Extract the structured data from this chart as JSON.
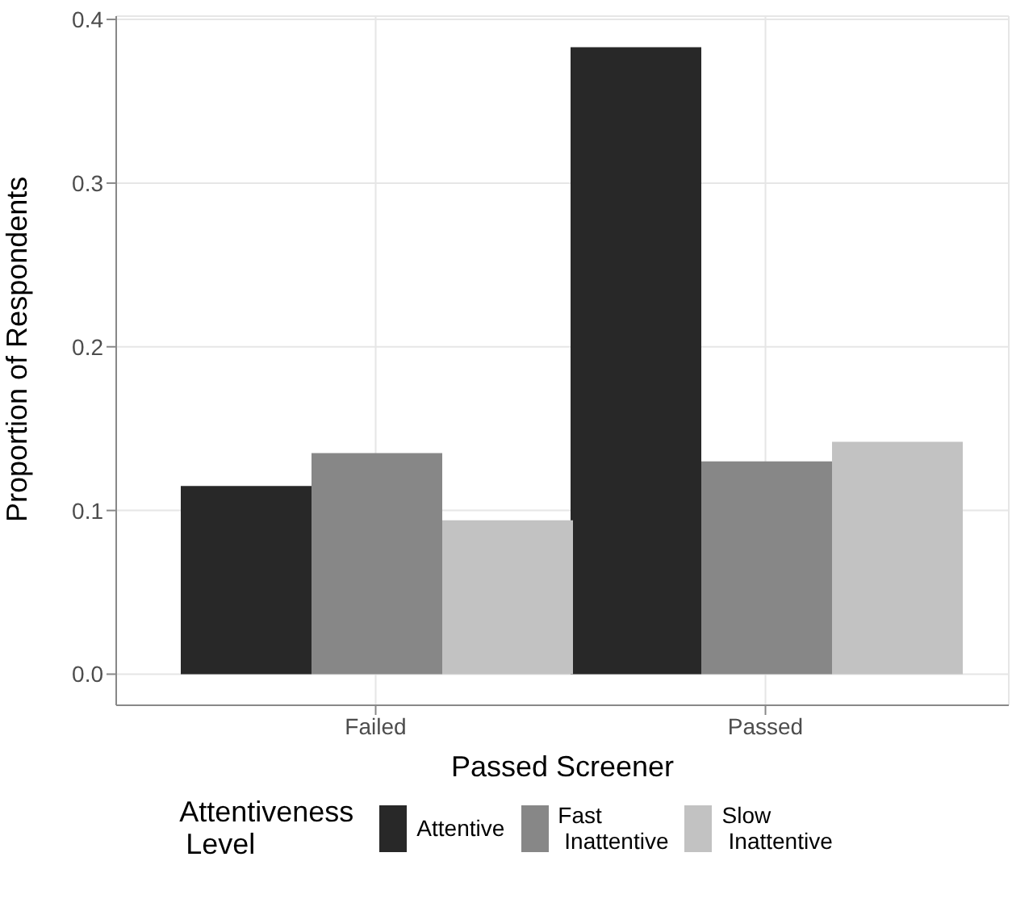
{
  "chart_data": {
    "type": "bar",
    "xlabel": "Passed Screener",
    "ylabel": "Proportion of Respondents",
    "legend_title": "Attentiveness Level",
    "categories": [
      "Failed",
      "Passed"
    ],
    "series": [
      {
        "name": "Attentive",
        "color": "#282828",
        "values": [
          0.115,
          0.383
        ]
      },
      {
        "name": "Fast Inattentive",
        "color": "#878787",
        "values": [
          0.135,
          0.13
        ]
      },
      {
        "name": "Slow Inattentive",
        "color": "#c2c2c2",
        "values": [
          0.094,
          0.142
        ]
      }
    ],
    "ylim": [
      -0.019,
      0.402
    ],
    "yticks": [
      {
        "value": 0,
        "label": "0.0"
      },
      0.1,
      0.2,
      0.3,
      0.4
    ],
    "grid": true,
    "legend": "bottom"
  }
}
